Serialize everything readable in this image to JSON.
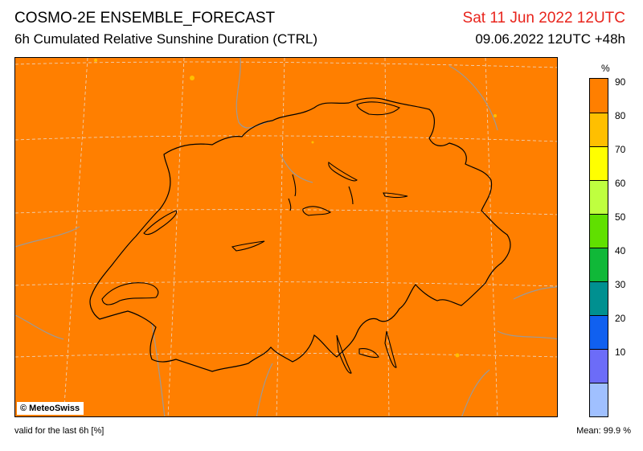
{
  "header": {
    "title": "COSMO-2E ENSEMBLE_FORECAST",
    "subtitle": "6h Cumulated Relative Sunshine Duration (CTRL)",
    "valid_date": "Sat 11 Jun 2022 12UTC",
    "run_info": "09.06.2022 12UTC +48h"
  },
  "map": {
    "credit": "© MeteoSwiss",
    "fill_color": "#ff7f00",
    "region": "Switzerland"
  },
  "legend": {
    "unit": "%",
    "classes": [
      {
        "label": "90",
        "color": "#ff7f00"
      },
      {
        "label": "80",
        "color": "#ffbf00"
      },
      {
        "label": "70",
        "color": "#ffff00"
      },
      {
        "label": "60",
        "color": "#bfff3f"
      },
      {
        "label": "50",
        "color": "#60e000"
      },
      {
        "label": "40",
        "color": "#10b838"
      },
      {
        "label": "30",
        "color": "#009090"
      },
      {
        "label": "20",
        "color": "#1060f0"
      },
      {
        "label": "10",
        "color": "#6c6cf8"
      },
      {
        "label": "",
        "color": "#a0c0ff"
      }
    ]
  },
  "footer": {
    "valid_text": "valid for the last 6h [%]",
    "mean_text": "Mean:  99.9 %"
  }
}
